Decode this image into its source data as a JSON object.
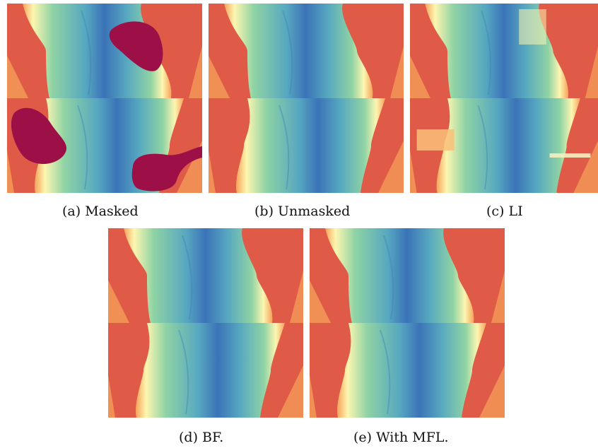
{
  "figure": {
    "panels": [
      {
        "id": "a",
        "caption": "(a) Masked",
        "variant": "masked"
      },
      {
        "id": "b",
        "caption": "(b) Unmasked",
        "variant": "clean"
      },
      {
        "id": "c",
        "caption": "(c) LI",
        "variant": "li"
      },
      {
        "id": "d",
        "caption": "(d) BF.",
        "variant": "clean"
      },
      {
        "id": "e",
        "caption": "(e) With MFL.",
        "variant": "clean"
      }
    ],
    "colors": {
      "background_red": "#e05a48",
      "orange": "#f6a35a",
      "yellow": "#fdf6b0",
      "green": "#8fd3a4",
      "teal": "#57a8c0",
      "blue": "#3b73b8",
      "mask": "#9c0f47"
    }
  }
}
